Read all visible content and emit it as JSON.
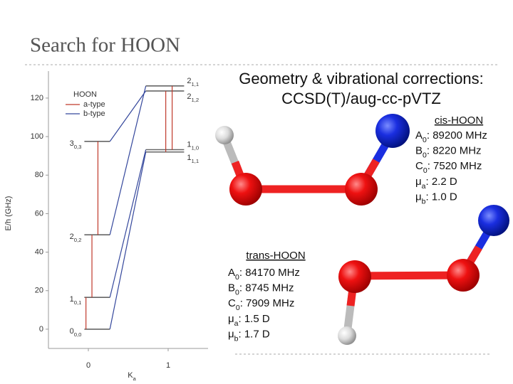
{
  "header": {
    "title": "Search for HOON"
  },
  "method": {
    "line1": "Geometry & vibrational corrections:",
    "line2": "CCSD(T)/aug-cc-pVTZ"
  },
  "cis": {
    "title": "cis-HOON",
    "rows": [
      {
        "symbol": "A",
        "sub": "0",
        "text": ": 89200 MHz"
      },
      {
        "symbol": "B",
        "sub": "0",
        "text": ": 8220 MHz"
      },
      {
        "symbol": "C",
        "sub": "0",
        "text": ": 7520 MHz"
      },
      {
        "symbol": "μ",
        "sub": "a",
        "text": ": 2.2 D"
      },
      {
        "symbol": "μ",
        "sub": "b",
        "text": ": 1.0 D"
      }
    ]
  },
  "trans": {
    "title": "trans-HOON",
    "rows": [
      {
        "symbol": "A",
        "sub": "0",
        "text": ": 84170 MHz"
      },
      {
        "symbol": "B",
        "sub": "0",
        "text": ": 8745 MHz"
      },
      {
        "symbol": "C",
        "sub": "0",
        "text": ": 7909 MHz"
      },
      {
        "symbol": "μ",
        "sub": "a",
        "text": ": 1.5 D"
      },
      {
        "symbol": "μ",
        "sub": "b",
        "text": ": 1.7 D"
      }
    ]
  },
  "chart_data": {
    "type": "energy-level",
    "ylabel": "E/h (GHz)",
    "xlabel": {
      "main": "K",
      "sub": "a"
    },
    "xlim": [
      -0.5,
      1.5
    ],
    "xticks": [
      0,
      1
    ],
    "ylim": [
      -10,
      134
    ],
    "yticks": [
      0,
      20,
      40,
      60,
      80,
      100,
      120
    ],
    "legend_title": "HOON",
    "levels": [
      {
        "label": "0",
        "sub": "0,0",
        "x": 0,
        "value": 0
      },
      {
        "label": "1",
        "sub": "0,1",
        "x": 0,
        "value": 16.5
      },
      {
        "label": "2",
        "sub": "0,2",
        "x": 0,
        "value": 49
      },
      {
        "label": "3",
        "sub": "0,3",
        "x": 0,
        "value": 97.5
      },
      {
        "label": "1",
        "sub": "1,1",
        "x": 1,
        "value": 92
      },
      {
        "label": "1",
        "sub": "1,0",
        "x": 1,
        "value": 93.2
      },
      {
        "label": "2",
        "sub": "1,2",
        "x": 1,
        "value": 123.7
      },
      {
        "label": "2",
        "sub": "1,1",
        "x": 1,
        "value": 126.3
      }
    ],
    "series": [
      {
        "name": "a-type",
        "color": "#c0392b",
        "segments": [
          [
            0,
            16.5
          ],
          [
            16.5,
            49
          ],
          [
            49,
            97.5
          ],
          [
            92,
            123.7
          ],
          [
            93.2,
            126.3
          ]
        ]
      },
      {
        "name": "b-type",
        "color": "#34479c",
        "segments": [
          [
            0,
            92
          ],
          [
            16.5,
            93.2
          ],
          [
            49,
            126.3
          ],
          [
            97.5,
            123.7
          ]
        ]
      }
    ]
  }
}
